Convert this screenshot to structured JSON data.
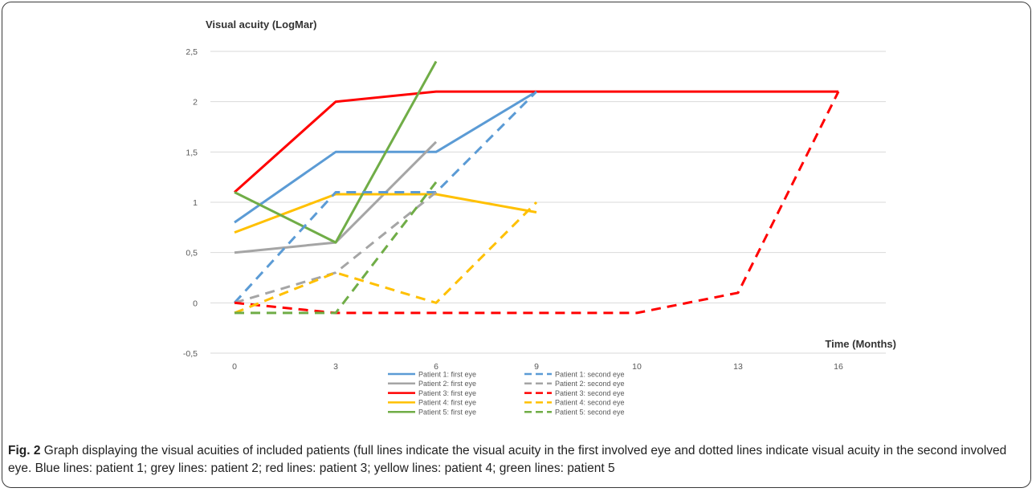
{
  "chart_data": {
    "type": "line",
    "ylabel": "Visual acuity (LogMar)",
    "xlabel": "Time (Months)",
    "categories": [
      "0",
      "3",
      "6",
      "9",
      "10",
      "13",
      "16"
    ],
    "y_ticks": [
      "2,5",
      "2",
      "1,5",
      "1",
      "0,5",
      "0",
      "-0,5"
    ],
    "ylim": [
      -0.5,
      2.5
    ],
    "grid": true,
    "legend_position": "bottom",
    "series": [
      {
        "name": "Patient 1: first eye",
        "color": "#5b9bd5",
        "dashed": false,
        "values": [
          0.8,
          1.5,
          1.5,
          2.1,
          null,
          null,
          null
        ]
      },
      {
        "name": "Patient 1: second eye",
        "color": "#5b9bd5",
        "dashed": true,
        "values": [
          0.0,
          1.1,
          1.1,
          2.1,
          null,
          null,
          null
        ]
      },
      {
        "name": "Patient 2: first eye",
        "color": "#a5a5a5",
        "dashed": false,
        "values": [
          0.5,
          0.6,
          1.6,
          null,
          null,
          null,
          null
        ]
      },
      {
        "name": "Patient 2: second eye",
        "color": "#a5a5a5",
        "dashed": true,
        "values": [
          0.0,
          0.3,
          1.1,
          null,
          null,
          null,
          null
        ]
      },
      {
        "name": "Patient 3: first eye",
        "color": "#ff0000",
        "dashed": false,
        "values": [
          1.1,
          2.0,
          2.1,
          2.1,
          2.1,
          2.1,
          2.1
        ]
      },
      {
        "name": "Patient 3: second eye",
        "color": "#ff0000",
        "dashed": true,
        "values": [
          0.0,
          -0.1,
          -0.1,
          -0.1,
          -0.1,
          0.1,
          2.1
        ]
      },
      {
        "name": "Patient 4: first eye",
        "color": "#ffc000",
        "dashed": false,
        "values": [
          0.7,
          1.08,
          1.08,
          0.9,
          null,
          null,
          null
        ]
      },
      {
        "name": "Patient 4: second eye",
        "color": "#ffc000",
        "dashed": true,
        "values": [
          -0.1,
          0.3,
          0.0,
          1.0,
          null,
          null,
          null
        ]
      },
      {
        "name": "Patient 5: first eye",
        "color": "#70ad47",
        "dashed": false,
        "values": [
          1.1,
          0.6,
          2.4,
          null,
          null,
          null,
          null
        ]
      },
      {
        "name": "Patient 5: second eye",
        "color": "#70ad47",
        "dashed": true,
        "values": [
          -0.1,
          -0.1,
          1.2,
          null,
          null,
          null,
          null
        ]
      }
    ]
  },
  "caption": {
    "fig_label": "Fig. 2",
    "text": " Graph displaying the visual acuities of included patients (full lines indicate the visual acuity in the first involved eye and dotted lines indicate visual acuity in the second involved eye. Blue lines: patient 1; grey lines: patient 2; red lines: patient 3; yellow lines: patient 4; green lines: patient 5"
  }
}
